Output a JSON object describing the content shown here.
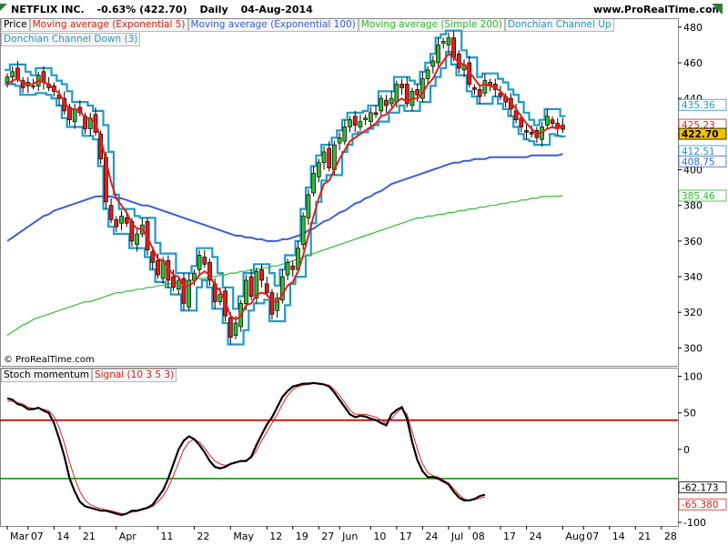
{
  "header": {
    "symbol": "NETFLIX INC.",
    "change": "-0.63% (422.70)",
    "period": "Daily",
    "date": "04-Aug-2014",
    "site": "www.ProRealTime.com"
  },
  "legend_top": [
    {
      "label": "Price",
      "color": "#000000"
    },
    {
      "label": "Moving average (Exponential 5)",
      "color": "#e0201a"
    },
    {
      "label": "Moving average (Exponential 100)",
      "color": "#3a5fd8"
    },
    {
      "label": "Moving average (Simple 200)",
      "color": "#33bb33"
    },
    {
      "label": "Donchian Channel Up",
      "color": "#2299c8"
    },
    {
      "label": "Donchian Channel Down (3)",
      "color": "#2299c8"
    }
  ],
  "legend_bottom": [
    {
      "label": "Stoch momentum",
      "color": "#000000"
    },
    {
      "label": "Signal (10 3 5 3)",
      "color": "#e0201a"
    }
  ],
  "copyright": "© ProRealTime.com",
  "colors": {
    "up": "#33bb33",
    "down": "#e0201a",
    "ema5": "#e0201a",
    "ema100": "#3a5fd8",
    "sma200": "#33bb33",
    "donchian": "#2299c8",
    "stoch": "#000000",
    "signal": "#e0201a",
    "level_high": "#c00000",
    "level_low": "#229922"
  },
  "chart_data": [
    {
      "type": "candlestick",
      "ylim": [
        290,
        485
      ],
      "yticks": [
        300,
        320,
        340,
        360,
        380,
        400,
        420,
        440,
        460,
        480
      ],
      "x_labels": [
        {
          "label": "Mar",
          "i": 0
        },
        {
          "label": "07",
          "i": 4
        },
        {
          "label": "14",
          "i": 9
        },
        {
          "label": "21",
          "i": 14
        },
        {
          "label": "Apr",
          "i": 21
        },
        {
          "label": "11",
          "i": 29
        },
        {
          "label": "22",
          "i": 36
        },
        {
          "label": "May",
          "i": 43
        },
        {
          "label": "12",
          "i": 50
        },
        {
          "label": "19",
          "i": 55
        },
        {
          "label": "27",
          "i": 60
        },
        {
          "label": "Jun",
          "i": 64
        },
        {
          "label": "10",
          "i": 70
        },
        {
          "label": "17",
          "i": 75
        },
        {
          "label": "24",
          "i": 80
        },
        {
          "label": "Jul",
          "i": 85
        },
        {
          "label": "08",
          "i": 89
        },
        {
          "label": "17",
          "i": 95
        },
        {
          "label": "24",
          "i": 100
        },
        {
          "label": "Aug",
          "i": 107
        },
        {
          "label": "07",
          "i": 111
        },
        {
          "label": "14",
          "i": 116
        },
        {
          "label": "21",
          "i": 121
        },
        {
          "label": "28",
          "i": 126
        }
      ],
      "last_values": {
        "price": 422.7,
        "donchian_up": 435.36,
        "ema5": 425.23,
        "donchian_down": 412.51,
        "ema100": 408.75,
        "sma200": 385.46
      },
      "close": [
        452,
        455,
        451,
        446,
        449,
        447,
        453,
        449,
        446,
        444,
        440,
        433,
        428,
        434,
        432,
        423,
        429,
        421,
        406,
        382,
        372,
        368,
        374,
        370,
        360,
        364,
        369,
        355,
        348,
        341,
        349,
        338,
        334,
        338,
        325,
        338,
        342,
        352,
        347,
        338,
        326,
        330,
        318,
        306,
        314,
        325,
        338,
        329,
        343,
        338,
        331,
        319,
        328,
        340,
        348,
        344,
        356,
        374,
        386,
        398,
        404,
        410,
        401,
        414,
        418,
        424,
        428,
        425,
        427,
        429,
        432,
        431,
        440,
        436,
        440,
        448,
        446,
        437,
        444,
        442,
        451,
        456,
        461,
        470,
        472,
        474,
        463,
        457,
        459,
        448,
        445,
        441,
        450,
        447,
        445,
        441,
        438,
        434,
        428,
        424,
        421,
        420,
        418,
        424,
        430,
        426,
        423,
        422.7
      ],
      "ema5": [
        448,
        450,
        451,
        449,
        448,
        448,
        450,
        449,
        448,
        445,
        443,
        438,
        434,
        434,
        433,
        429,
        429,
        426,
        418,
        405,
        393,
        384,
        380,
        376,
        370,
        367,
        367,
        362,
        356,
        350,
        349,
        345,
        341,
        340,
        334,
        335,
        337,
        341,
        343,
        341,
        335,
        332,
        326,
        318,
        316,
        318,
        324,
        325,
        330,
        331,
        330,
        326,
        326,
        330,
        335,
        337,
        343,
        352,
        363,
        374,
        384,
        392,
        394,
        400,
        406,
        411,
        416,
        418,
        420,
        422,
        424,
        426,
        430,
        431,
        434,
        438,
        440,
        438,
        440,
        440,
        443,
        448,
        451,
        457,
        461,
        465,
        463,
        460,
        459,
        455,
        451,
        447,
        448,
        447,
        446,
        444,
        441,
        438,
        434,
        430,
        426,
        423,
        420,
        421,
        423,
        424,
        423,
        425.23
      ],
      "ema100": [
        360,
        362,
        364,
        366,
        368,
        370,
        372,
        374,
        375,
        377,
        378,
        379,
        380,
        381,
        382,
        383,
        384,
        385,
        385,
        385,
        385,
        384,
        384,
        383,
        382,
        381,
        380,
        380,
        379,
        378,
        377,
        376,
        375,
        374,
        373,
        372,
        371,
        370,
        369,
        368,
        367,
        366,
        365,
        364,
        363,
        363,
        362,
        362,
        361,
        361,
        360,
        360,
        360,
        361,
        361,
        362,
        363,
        364,
        366,
        367,
        369,
        371,
        372,
        374,
        376,
        377,
        379,
        381,
        382,
        384,
        385,
        387,
        388,
        390,
        392,
        393,
        394,
        395,
        396,
        397,
        398,
        399,
        400,
        401,
        402,
        403,
        404,
        404,
        405,
        405,
        406,
        406,
        406,
        407,
        407,
        407,
        407,
        407,
        407,
        407,
        407,
        408,
        408,
        408,
        408,
        408,
        408,
        408.75
      ],
      "sma200": [
        307,
        309,
        311,
        313,
        314,
        316,
        317,
        318,
        319,
        320,
        321,
        322,
        323,
        324,
        325,
        326,
        326,
        327,
        328,
        329,
        330,
        331,
        331,
        332,
        332,
        333,
        333,
        334,
        334,
        335,
        335,
        336,
        336,
        337,
        337,
        338,
        338,
        339,
        339,
        340,
        340,
        341,
        341,
        342,
        342,
        343,
        343,
        344,
        344,
        345,
        345,
        346,
        346,
        347,
        348,
        349,
        350,
        351,
        352,
        353,
        354,
        355,
        356,
        357,
        358,
        359,
        360,
        361,
        362,
        363,
        364,
        365,
        366,
        367,
        368,
        369,
        370,
        371,
        372,
        373,
        373,
        374,
        374,
        375,
        375,
        376,
        376,
        377,
        377,
        378,
        378,
        379,
        379,
        380,
        380,
        381,
        381,
        382,
        382,
        383,
        383,
        384,
        384,
        385,
        385,
        385,
        385,
        385.46
      ]
    },
    {
      "type": "line",
      "ylim": [
        -105,
        112
      ],
      "yticks": [
        100,
        50,
        0,
        -100
      ],
      "levels": [
        40,
        -40
      ],
      "last_values": {
        "stoch": -62.173,
        "signal": -65.38
      },
      "series": [
        {
          "name": "Stoch momentum",
          "values": [
            70,
            68,
            62,
            60,
            55,
            55,
            57,
            53,
            50,
            36,
            15,
            -10,
            -40,
            -58,
            -72,
            -78,
            -80,
            -82,
            -84,
            -84,
            -86,
            -88,
            -90,
            -88,
            -84,
            -84,
            -82,
            -80,
            -76,
            -66,
            -56,
            -40,
            -20,
            0,
            12,
            18,
            14,
            6,
            -4,
            -16,
            -24,
            -26,
            -24,
            -20,
            -18,
            -16,
            -16,
            -10,
            6,
            20,
            34,
            44,
            58,
            72,
            80,
            86,
            88,
            90,
            90,
            91,
            90,
            89,
            86,
            78,
            68,
            58,
            48,
            44,
            46,
            45,
            42,
            40,
            36,
            33,
            48,
            54,
            58,
            42,
            10,
            -15,
            -30,
            -38,
            -38,
            -40,
            -44,
            -48,
            -58,
            -66,
            -70,
            -70,
            -68,
            -64,
            -62.173
          ]
        },
        {
          "name": "Signal (10 3 5 3)",
          "values": [
            66,
            66,
            64,
            62,
            58,
            56,
            56,
            55,
            53,
            45,
            30,
            8,
            -18,
            -40,
            -58,
            -70,
            -76,
            -79,
            -81,
            -83,
            -84,
            -86,
            -88,
            -88,
            -86,
            -85,
            -83,
            -81,
            -78,
            -72,
            -64,
            -52,
            -36,
            -18,
            0,
            10,
            14,
            10,
            2,
            -8,
            -16,
            -20,
            -22,
            -20,
            -18,
            -16,
            -15,
            -12,
            -2,
            12,
            24,
            36,
            48,
            62,
            74,
            82,
            86,
            88,
            89,
            90,
            90,
            89,
            88,
            82,
            74,
            64,
            54,
            48,
            48,
            48,
            46,
            44,
            40,
            36,
            42,
            50,
            56,
            48,
            24,
            0,
            -20,
            -32,
            -36,
            -38,
            -42,
            -46,
            -54,
            -62,
            -68,
            -70,
            -69,
            -67,
            -65.38
          ]
        }
      ]
    }
  ]
}
